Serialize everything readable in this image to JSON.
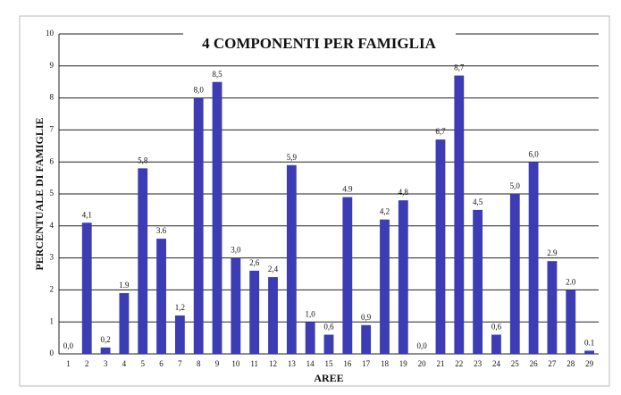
{
  "chart_data": {
    "type": "bar",
    "title": "4 COMPONENTI PER FAMIGLIA",
    "x_label": "AREE",
    "y_label": "PERCENTUALE DI FAMIGLIE",
    "categories": [
      "1",
      "2",
      "3",
      "4",
      "5",
      "6",
      "7",
      "8",
      "9",
      "10",
      "11",
      "12",
      "13",
      "14",
      "15",
      "16",
      "17",
      "18",
      "19",
      "20",
      "21",
      "22",
      "23",
      "24",
      "25",
      "26",
      "27",
      "28",
      "29"
    ],
    "values": [
      0,
      4.1,
      0.2,
      1.9,
      5.8,
      3.6,
      1.2,
      8.0,
      8.5,
      3.0,
      2.6,
      2.4,
      5.9,
      1.0,
      0.6,
      4.9,
      0.9,
      4.2,
      4.8,
      0,
      6.7,
      8.7,
      4.5,
      0.6,
      5.0,
      6.0,
      2.9,
      2.0,
      0.1
    ],
    "value_labels": [
      "0,0",
      "4,1",
      "0,2",
      "1.9",
      "5,8",
      "3.6",
      "1,2",
      "8,0",
      "8,5",
      "3,0",
      "2,6",
      "2,4",
      "5,9",
      "1,0",
      "0,6",
      "4.9",
      "0,9",
      "4,2",
      "4,8",
      "0,0",
      "6,7",
      "8,7",
      "4,5",
      "0,6",
      "5,0",
      "6,0",
      "2.9",
      "2.0",
      "0.1"
    ],
    "color": "#3c3cb4",
    "ylim": [
      0,
      10
    ],
    "yticks": [
      0,
      1,
      2,
      3,
      4,
      5,
      6,
      7,
      8,
      9,
      10
    ],
    "grid": true
  }
}
